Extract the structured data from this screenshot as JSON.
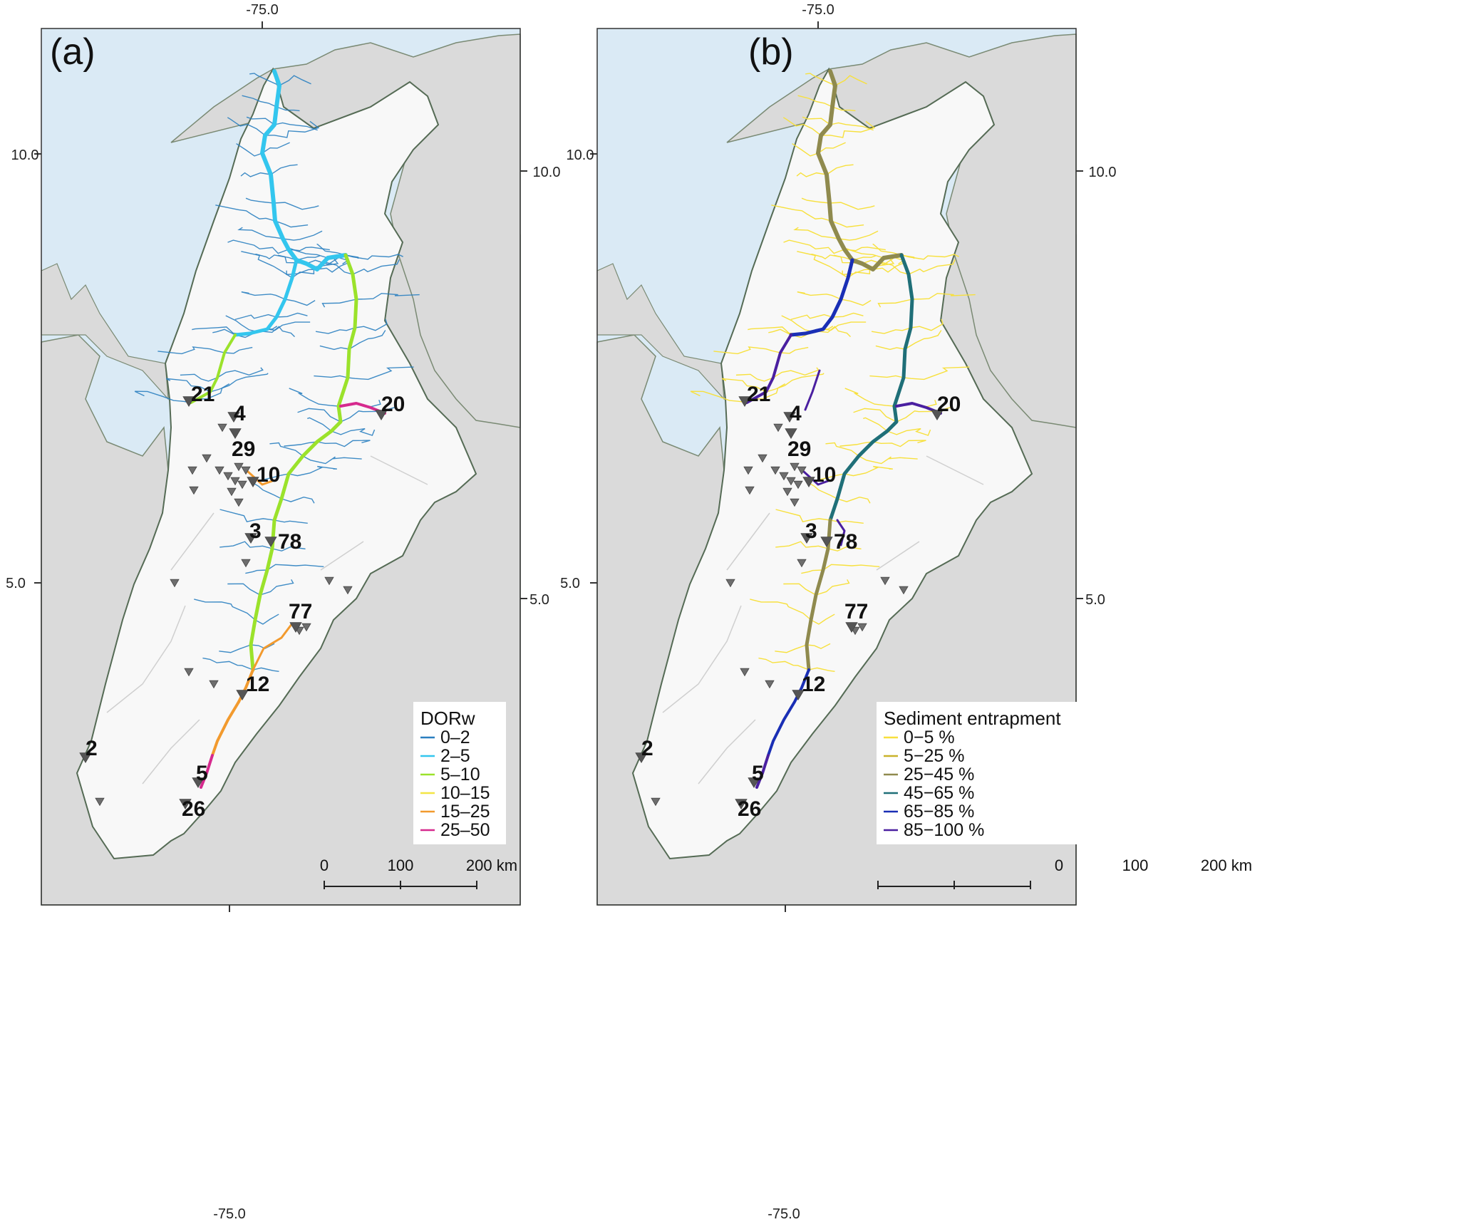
{
  "panels": [
    {
      "id": "a",
      "label": "(a)",
      "lon_top": "-75.0",
      "lon_bottom": "-75.0",
      "lat_left_top": "10.0",
      "lat_left_bottom": "5.0",
      "lat_right_top": "10.0",
      "lat_right_bottom": "5.0",
      "legend": {
        "title": "DORw",
        "items": [
          {
            "label": "0–2",
            "color": "#2a7fc0"
          },
          {
            "label": "2–5",
            "color": "#33c6ee"
          },
          {
            "label": "5–10",
            "color": "#9be22b"
          },
          {
            "label": "10–15",
            "color": "#f3e545"
          },
          {
            "label": "15–25",
            "color": "#f29a2e"
          },
          {
            "label": "25–50",
            "color": "#d62a8e"
          }
        ]
      },
      "scale": {
        "labels": [
          "0",
          "100",
          "200 km"
        ]
      }
    },
    {
      "id": "b",
      "label": "(b)",
      "lon_top": "-75.0",
      "lon_bottom": "-75.0",
      "lat_left_top": "10.0",
      "lat_left_bottom": "5.0",
      "lat_right_top": "10.0",
      "lat_right_bottom": "5.0",
      "legend": {
        "title": "Sediment entrapment",
        "items": [
          {
            "label": "0−5 %",
            "color": "#f7e03d"
          },
          {
            "label": "5−25 %",
            "color": "#c9b22a"
          },
          {
            "label": "25−45 %",
            "color": "#8f8a4e"
          },
          {
            "label": "45−65 %",
            "color": "#1f6f78"
          },
          {
            "label": "65−85 %",
            "color": "#1a2fb5"
          },
          {
            "label": "85−100 %",
            "color": "#4a1fa0"
          }
        ]
      },
      "scale": {
        "labels": [
          "0",
          "100",
          "200 km"
        ]
      }
    }
  ],
  "dams": [
    "21",
    "4",
    "29",
    "10",
    "3",
    "78",
    "20",
    "77",
    "12",
    "2",
    "5",
    "26"
  ],
  "colors": {
    "sea": "#daeaf5",
    "land": "#dadada",
    "basin": "#f8f8f8",
    "coast": "#7a8a74"
  }
}
